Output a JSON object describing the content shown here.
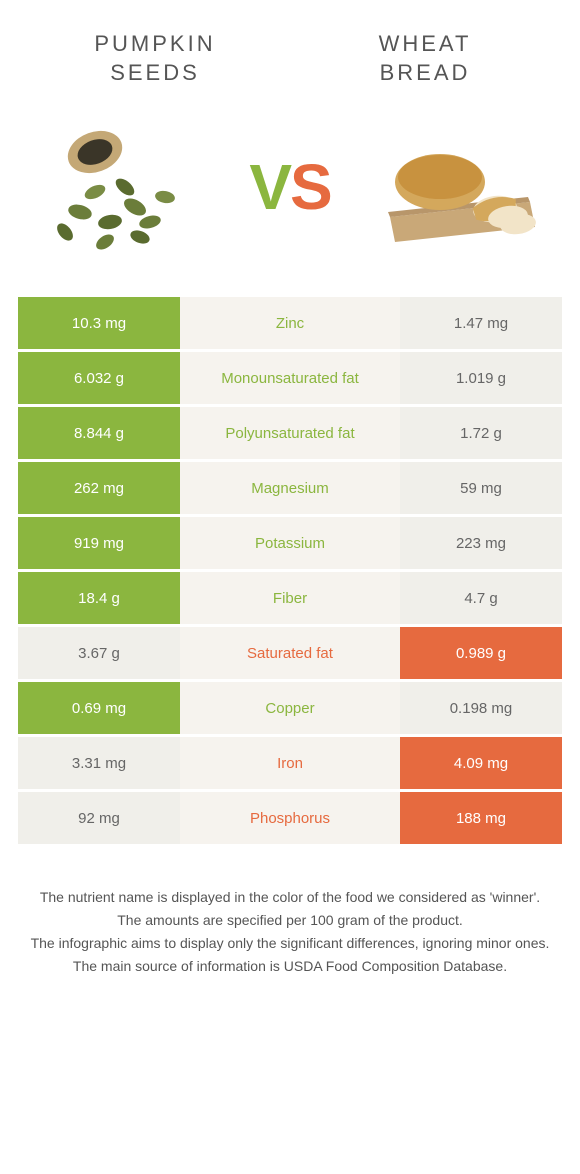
{
  "left_title_line1": "PUMPKIN",
  "left_title_line2": "SEEDS",
  "right_title_line1": "WHEAT",
  "right_title_line2": "BREAD",
  "vs_v": "V",
  "vs_s": "S",
  "colors": {
    "green": "#8bb63f",
    "orange": "#e66a3f",
    "light": "#f0efea",
    "mid": "#f6f3ee"
  },
  "rows": [
    {
      "left": "10.3 mg",
      "label": "Zinc",
      "right": "1.47 mg",
      "winner": "left"
    },
    {
      "left": "6.032 g",
      "label": "Monounsaturated fat",
      "right": "1.019 g",
      "winner": "left"
    },
    {
      "left": "8.844 g",
      "label": "Polyunsaturated fat",
      "right": "1.72 g",
      "winner": "left"
    },
    {
      "left": "262 mg",
      "label": "Magnesium",
      "right": "59 mg",
      "winner": "left"
    },
    {
      "left": "919 mg",
      "label": "Potassium",
      "right": "223 mg",
      "winner": "left"
    },
    {
      "left": "18.4 g",
      "label": "Fiber",
      "right": "4.7 g",
      "winner": "left"
    },
    {
      "left": "3.67 g",
      "label": "Saturated fat",
      "right": "0.989 g",
      "winner": "right"
    },
    {
      "left": "0.69 mg",
      "label": "Copper",
      "right": "0.198 mg",
      "winner": "left"
    },
    {
      "left": "3.31 mg",
      "label": "Iron",
      "right": "4.09 mg",
      "winner": "right"
    },
    {
      "left": "92 mg",
      "label": "Phosphorus",
      "right": "188 mg",
      "winner": "right"
    }
  ],
  "footer": {
    "line1": "The nutrient name is displayed in the color of the food we considered as 'winner'.",
    "line2": "The amounts are specified per 100 gram of the product.",
    "line3": "The infographic aims to display only the significant differences, ignoring minor ones.",
    "line4": "The main source of information is USDA Food Composition Database."
  }
}
